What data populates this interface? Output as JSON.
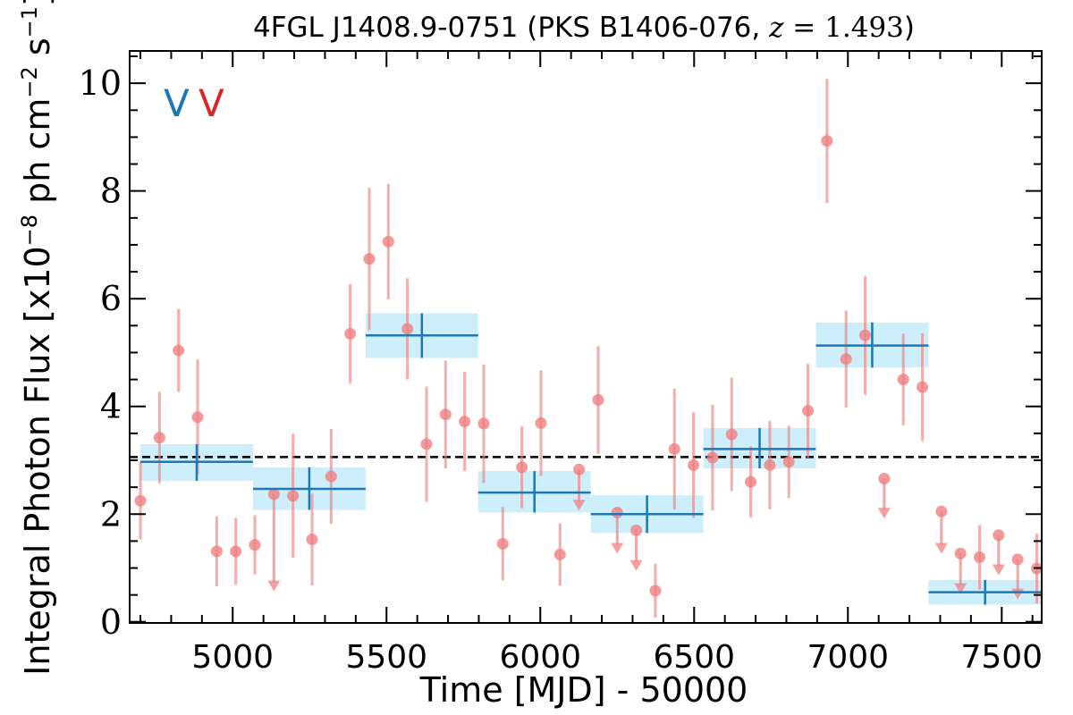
{
  "chart_data": {
    "type": "scatter",
    "title": "4FGL J1408.9-0751 (PKS B1406-076, z = 1.493)",
    "title_parts": {
      "prefix": "4FGL J1408.9-0751 (PKS B1406-076, ",
      "z_symbol": "z",
      "z_equals": " = ",
      "z_value": "1.493",
      "suffix": ")"
    },
    "xlabel": "Time [MJD] - 50000",
    "ylabel": "Integral Photon Flux [x10⁻⁸ ph cm⁻² s⁻¹]",
    "ylabel_parts": {
      "prefix": "Integral Photon Flux [x10",
      "exp1": "−8",
      "mid1": " ph cm",
      "exp2": "−2",
      "mid2": " s",
      "exp3": "−1",
      "suffix": "]"
    },
    "xlim": [
      4665,
      7630
    ],
    "ylim": [
      -0.02,
      10.6
    ],
    "x_ticks": [
      5000,
      5500,
      6000,
      6500,
      7000,
      7500
    ],
    "y_ticks": [
      0,
      2,
      4,
      6,
      8,
      10
    ],
    "legend": {
      "placement": "top-left",
      "markers": [
        "V",
        "V"
      ],
      "colors": [
        "#1f77b4",
        "#d62728"
      ]
    },
    "mean_flux": 3.06,
    "colors": {
      "points": "#f08080",
      "bins": "#1f77b4",
      "bin_band": "#cdeefb",
      "mean_line": "#000000",
      "marker_v1": "#1f77b4",
      "marker_v2": "#d62728"
    },
    "series": [
      {
        "kind": "fine_bins",
        "points": [
          {
            "x": 4700,
            "y": 2.25,
            "err": 0.72
          },
          {
            "x": 4762,
            "y": 3.42,
            "err": 0.85
          },
          {
            "x": 4824,
            "y": 5.04,
            "err": 0.77
          },
          {
            "x": 4886,
            "y": 3.8,
            "err": 1.07
          },
          {
            "x": 4948,
            "y": 1.31,
            "err": 0.65
          },
          {
            "x": 5010,
            "y": 1.31,
            "err": 0.62
          },
          {
            "x": 5072,
            "y": 1.43,
            "err": 0.55
          },
          {
            "x": 5134,
            "y": 2.37,
            "err": 0.65,
            "upper_limit": true,
            "ul_y": 0.6
          },
          {
            "x": 5196,
            "y": 2.34,
            "err": 1.15
          },
          {
            "x": 5258,
            "y": 1.53,
            "err": 0.85
          },
          {
            "x": 5320,
            "y": 2.7,
            "err": 0.88
          },
          {
            "x": 5382,
            "y": 5.35,
            "err": 0.92
          },
          {
            "x": 5444,
            "y": 6.74,
            "err": 1.32
          },
          {
            "x": 5506,
            "y": 7.06,
            "err": 1.07
          },
          {
            "x": 5568,
            "y": 5.44,
            "err": 0.94
          },
          {
            "x": 5630,
            "y": 3.3,
            "err": 1.07
          },
          {
            "x": 5692,
            "y": 3.85,
            "err": 1.0
          },
          {
            "x": 5754,
            "y": 3.72,
            "err": 0.92
          },
          {
            "x": 5816,
            "y": 3.68,
            "err": 1.1
          },
          {
            "x": 5878,
            "y": 1.45,
            "err": 0.68
          },
          {
            "x": 5940,
            "y": 2.87,
            "err": 0.76
          },
          {
            "x": 6002,
            "y": 3.69,
            "err": 0.98
          },
          {
            "x": 6064,
            "y": 1.25,
            "err": 0.58
          },
          {
            "x": 6126,
            "y": 2.83,
            "err": 0.68,
            "upper_limit": true,
            "ul_y": 2.1
          },
          {
            "x": 6188,
            "y": 4.12,
            "err": 1.0
          },
          {
            "x": 6250,
            "y": 2.03,
            "err": 0.68,
            "upper_limit": true,
            "ul_y": 1.3
          },
          {
            "x": 6312,
            "y": 1.7,
            "err": 0.72,
            "upper_limit": true,
            "ul_y": 0.98
          },
          {
            "x": 6374,
            "y": 0.58,
            "err": 0.5
          },
          {
            "x": 6436,
            "y": 3.21,
            "err": 1.12
          },
          {
            "x": 6498,
            "y": 2.91,
            "err": 0.98
          },
          {
            "x": 6560,
            "y": 3.05,
            "err": 0.98
          },
          {
            "x": 6622,
            "y": 3.48,
            "err": 1.05
          },
          {
            "x": 6684,
            "y": 2.6,
            "err": 0.66
          },
          {
            "x": 6746,
            "y": 2.91,
            "err": 0.82
          },
          {
            "x": 6808,
            "y": 2.97,
            "err": 0.67
          },
          {
            "x": 6870,
            "y": 3.92,
            "err": 0.87
          },
          {
            "x": 6932,
            "y": 8.93,
            "err": 1.15
          },
          {
            "x": 6994,
            "y": 4.88,
            "err": 0.9
          },
          {
            "x": 7056,
            "y": 5.32,
            "err": 1.1
          },
          {
            "x": 7118,
            "y": 2.66,
            "err": 0.7,
            "upper_limit": true,
            "ul_y": 1.95
          },
          {
            "x": 7180,
            "y": 4.5,
            "err": 0.85
          },
          {
            "x": 7242,
            "y": 4.36,
            "err": 1.0
          },
          {
            "x": 7304,
            "y": 2.05,
            "err": 0.72,
            "upper_limit": true,
            "ul_y": 1.3
          },
          {
            "x": 7366,
            "y": 1.27,
            "err": 0.72,
            "upper_limit": true,
            "ul_y": 0.55
          },
          {
            "x": 7428,
            "y": 1.2,
            "err": 0.6
          },
          {
            "x": 7490,
            "y": 1.61,
            "err": 0.72,
            "upper_limit": true,
            "ul_y": 0.9
          },
          {
            "x": 7552,
            "y": 1.16,
            "err": 0.7,
            "upper_limit": true,
            "ul_y": 0.45
          },
          {
            "x": 7614,
            "y": 0.99,
            "err": 0.65
          }
        ]
      },
      {
        "kind": "coarse_bins",
        "bins": [
          {
            "x0": 4700,
            "x1": 5066,
            "xc": 4883,
            "y": 2.97,
            "ylo": 2.62,
            "yhi": 3.3
          },
          {
            "x0": 5066,
            "x1": 5432,
            "xc": 5249,
            "y": 2.47,
            "ylo": 2.08,
            "yhi": 2.87
          },
          {
            "x0": 5432,
            "x1": 5798,
            "xc": 5615,
            "y": 5.32,
            "ylo": 4.9,
            "yhi": 5.73
          },
          {
            "x0": 5798,
            "x1": 6164,
            "xc": 5981,
            "y": 2.4,
            "ylo": 2.03,
            "yhi": 2.8
          },
          {
            "x0": 6164,
            "x1": 6530,
            "xc": 6347,
            "y": 2.0,
            "ylo": 1.65,
            "yhi": 2.35
          },
          {
            "x0": 6530,
            "x1": 6896,
            "xc": 6713,
            "y": 3.21,
            "ylo": 2.85,
            "yhi": 3.6
          },
          {
            "x0": 6896,
            "x1": 7262,
            "xc": 7079,
            "y": 5.13,
            "ylo": 4.72,
            "yhi": 5.56
          },
          {
            "x0": 7262,
            "x1": 7630,
            "xc": 7446,
            "y": 0.55,
            "ylo": 0.32,
            "yhi": 0.78
          }
        ]
      }
    ]
  }
}
